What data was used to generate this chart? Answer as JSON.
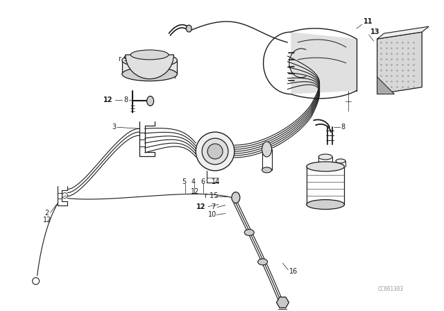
{
  "bg_color": "#ffffff",
  "line_color": "#1a1a1a",
  "fig_width": 6.4,
  "fig_height": 4.48,
  "dpi": 100,
  "watermark": "CC001303"
}
